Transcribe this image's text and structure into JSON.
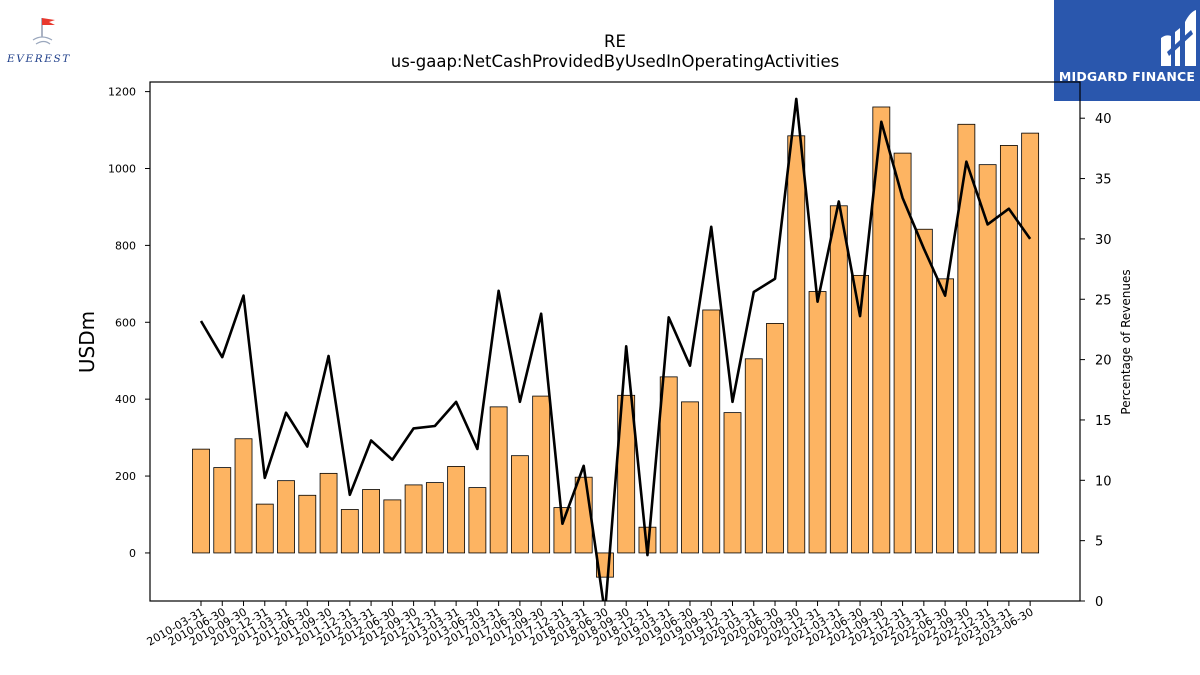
{
  "header": {
    "title": "RE",
    "subtitle": "us-gaap:NetCashProvidedByUsedInOperatingActivities"
  },
  "logos": {
    "left_text": "EVEREST",
    "right_text": "MIDGARD FINANCE"
  },
  "colors": {
    "bar_fill": "#fdb462",
    "bar_edge": "#000000",
    "line": "#000000",
    "brand_blue": "#2a57ad",
    "flag_red": "#e8382e"
  },
  "chart_data": {
    "type": "bar",
    "ylabel": "USDm",
    "y2label": "Percentage of Revenues",
    "ylim": [
      -125,
      1225
    ],
    "y2lim": [
      0,
      43
    ],
    "yticks": [
      0,
      200,
      400,
      600,
      800,
      1000,
      1200
    ],
    "y2ticks": [
      0,
      5,
      10,
      15,
      20,
      25,
      30,
      35,
      40
    ],
    "grid": false,
    "categories": [
      "2010-03-31",
      "2010-06-30",
      "2010-09-30",
      "2010-12-31",
      "2011-03-31",
      "2011-06-30",
      "2011-09-30",
      "2011-12-31",
      "2012-03-31",
      "2012-06-30",
      "2012-09-30",
      "2012-12-31",
      "2013-03-31",
      "2013-06-30",
      "2017-03-31",
      "2017-06-30",
      "2017-09-30",
      "2017-12-31",
      "2018-03-31",
      "2018-06-30",
      "2018-09-30",
      "2018-12-31",
      "2019-03-31",
      "2019-06-30",
      "2019-09-30",
      "2019-12-31",
      "2020-03-31",
      "2020-06-30",
      "2020-09-30",
      "2020-12-31",
      "2021-03-31",
      "2021-06-30",
      "2021-09-30",
      "2021-12-31",
      "2022-03-31",
      "2022-06-30",
      "2022-09-30",
      "2022-12-31",
      "2023-03-31",
      "2023-06-30"
    ],
    "series": [
      {
        "axis": "left",
        "kind": "bar",
        "values": [
          270,
          222,
          297,
          127,
          188,
          150,
          207,
          113,
          165,
          138,
          177,
          183,
          225,
          170,
          380,
          253,
          408,
          118,
          197,
          -63,
          410,
          67,
          458,
          393,
          632,
          365,
          505,
          597,
          1085,
          680,
          903,
          722,
          1160,
          1040,
          842,
          713,
          1115,
          1010,
          1060,
          1092
        ]
      },
      {
        "axis": "right",
        "kind": "line",
        "values": [
          23.2,
          20.2,
          25.3,
          10.2,
          15.6,
          12.8,
          20.3,
          8.8,
          13.3,
          11.7,
          14.3,
          14.5,
          16.5,
          12.6,
          25.7,
          16.5,
          23.8,
          6.4,
          11.2,
          -1.0,
          21.1,
          3.8,
          23.5,
          19.5,
          31.0,
          16.5,
          25.6,
          26.7,
          41.6,
          24.8,
          33.1,
          23.6,
          39.7,
          33.4,
          29.2,
          25.3,
          36.4,
          31.2,
          32.5,
          30.0
        ]
      }
    ]
  }
}
